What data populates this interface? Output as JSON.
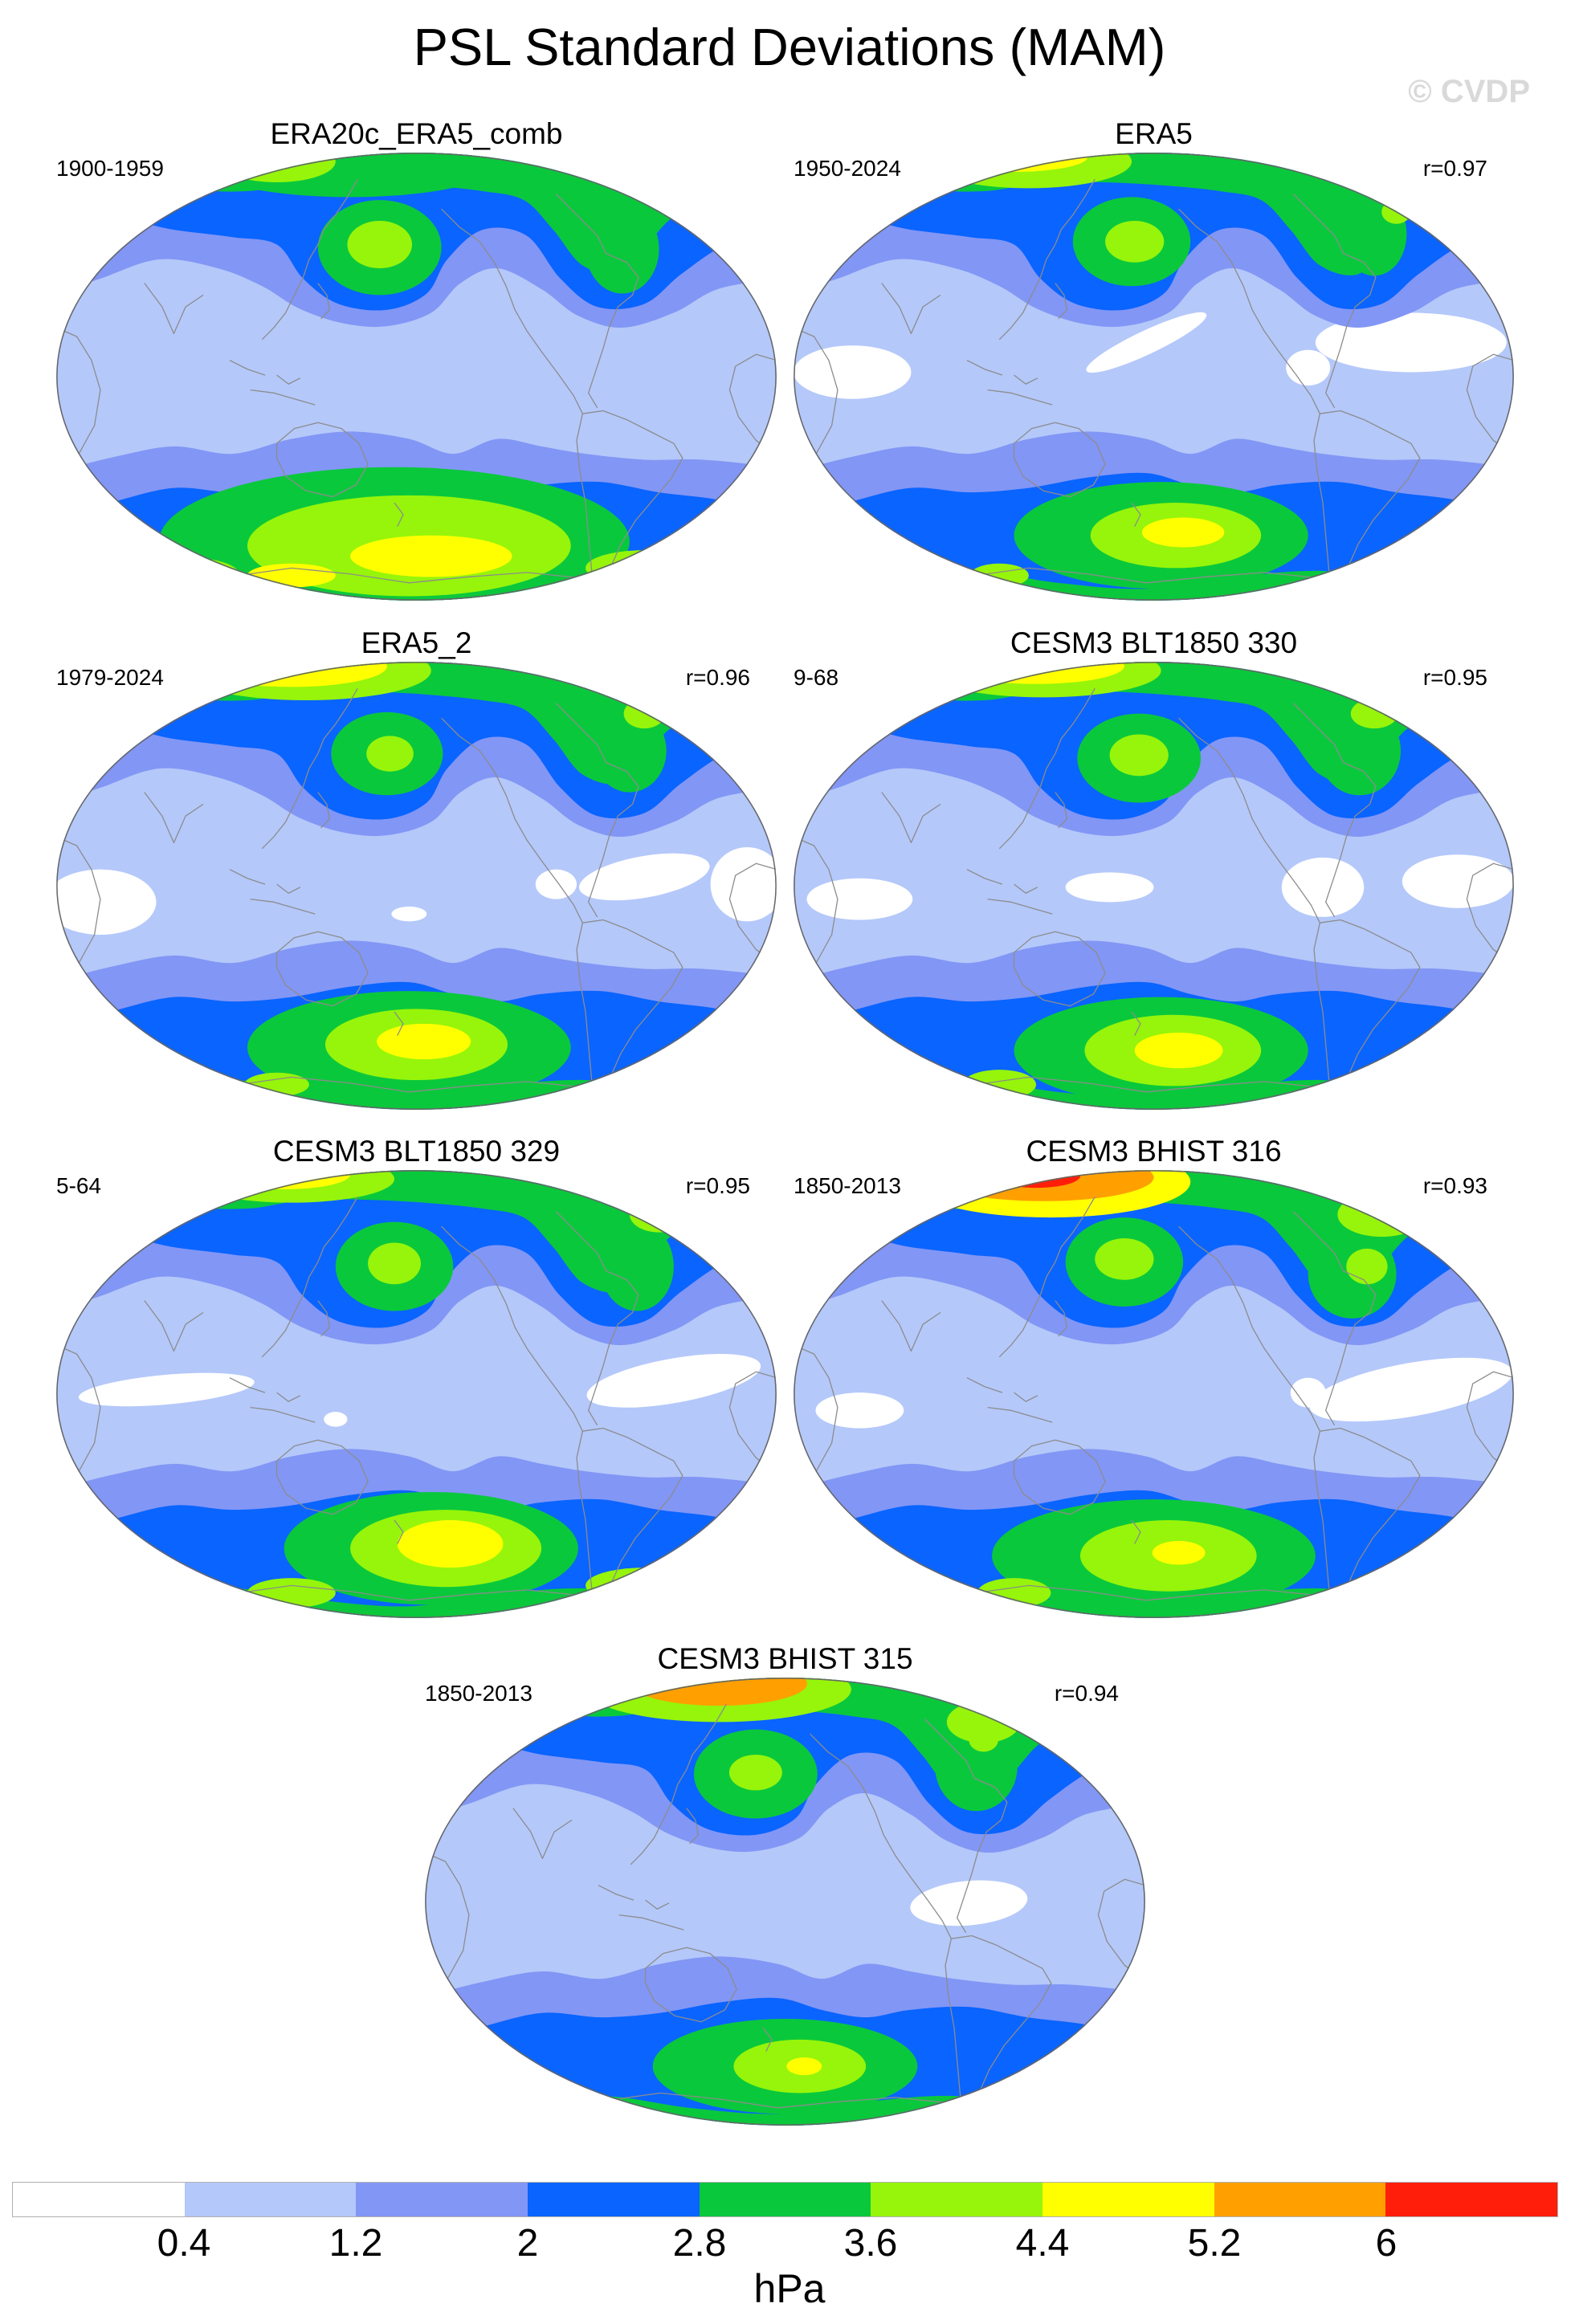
{
  "title": "PSL Standard Deviations (MAM)",
  "watermark": "© CVDP",
  "panels": [
    {
      "title": "ERA20c_ERA5_comb",
      "period": "1900-1959"
    },
    {
      "title": "ERA5",
      "period": "1950-2024",
      "correlation": "r=0.97"
    },
    {
      "title": "ERA5_2",
      "period": "1979-2024",
      "correlation": "r=0.96"
    },
    {
      "title": "CESM3 BLT1850 330",
      "period": "9-68",
      "correlation": "r=0.95"
    },
    {
      "title": "CESM3 BLT1850 329",
      "period": "5-64",
      "correlation": "r=0.95"
    },
    {
      "title": "CESM3 BHIST 316",
      "period": "1850-2013",
      "correlation": "r=0.93"
    },
    {
      "title": "CESM3 BHIST 315",
      "period": "1850-2013",
      "correlation": "r=0.94"
    }
  ],
  "colorbar": {
    "levels": [
      0.4,
      1.2,
      2,
      2.8,
      3.6,
      4.4,
      5.2,
      6
    ],
    "colors": [
      "#ffffff",
      "#b4c8fa",
      "#8296f5",
      "#0a64ff",
      "#0ac83c",
      "#96f50a",
      "#ffff00",
      "#ffa000",
      "#ff1e0a"
    ],
    "units": "hPa"
  },
  "coastline_color": "#8c8c8c",
  "map_outline_color": "#666666"
}
